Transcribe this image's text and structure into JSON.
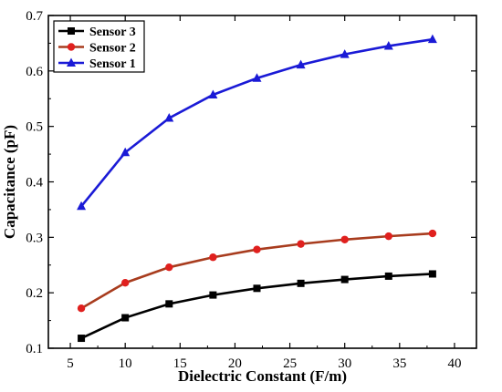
{
  "chart_data": {
    "type": "line",
    "xlabel": "Dielectric Constant (F/m)",
    "ylabel": "Capacitance (pF)",
    "xlim": [
      3,
      42
    ],
    "ylim": [
      0.1,
      0.7
    ],
    "x_ticks": [
      5,
      10,
      15,
      20,
      25,
      30,
      35,
      40
    ],
    "x_tick_labels": [
      "5",
      "10",
      "15",
      "20",
      "25",
      "30",
      "35",
      "40"
    ],
    "y_ticks": [
      0.1,
      0.2,
      0.3,
      0.4,
      0.5,
      0.6,
      0.7
    ],
    "y_tick_labels": [
      "0.1",
      "0.2",
      "0.3",
      "0.4",
      "0.5",
      "0.6",
      "0.7"
    ],
    "grid": false,
    "legend_position": "top-left",
    "x": [
      6,
      10,
      14,
      18,
      22,
      26,
      30,
      34,
      38
    ],
    "series": [
      {
        "name": "Sensor 3",
        "color": "#000000",
        "marker": "square",
        "values": [
          0.118,
          0.155,
          0.18,
          0.196,
          0.208,
          0.217,
          0.224,
          0.23,
          0.234
        ]
      },
      {
        "name": "Sensor 2",
        "color": "#a83c1e",
        "marker": "circle",
        "marker_color": "#e0201e",
        "values": [
          0.172,
          0.218,
          0.246,
          0.264,
          0.278,
          0.288,
          0.296,
          0.302,
          0.307
        ]
      },
      {
        "name": "Sensor 1",
        "color": "#1a1ad6",
        "marker": "triangle",
        "values": [
          0.356,
          0.453,
          0.515,
          0.557,
          0.587,
          0.611,
          0.63,
          0.645,
          0.657
        ]
      }
    ]
  }
}
